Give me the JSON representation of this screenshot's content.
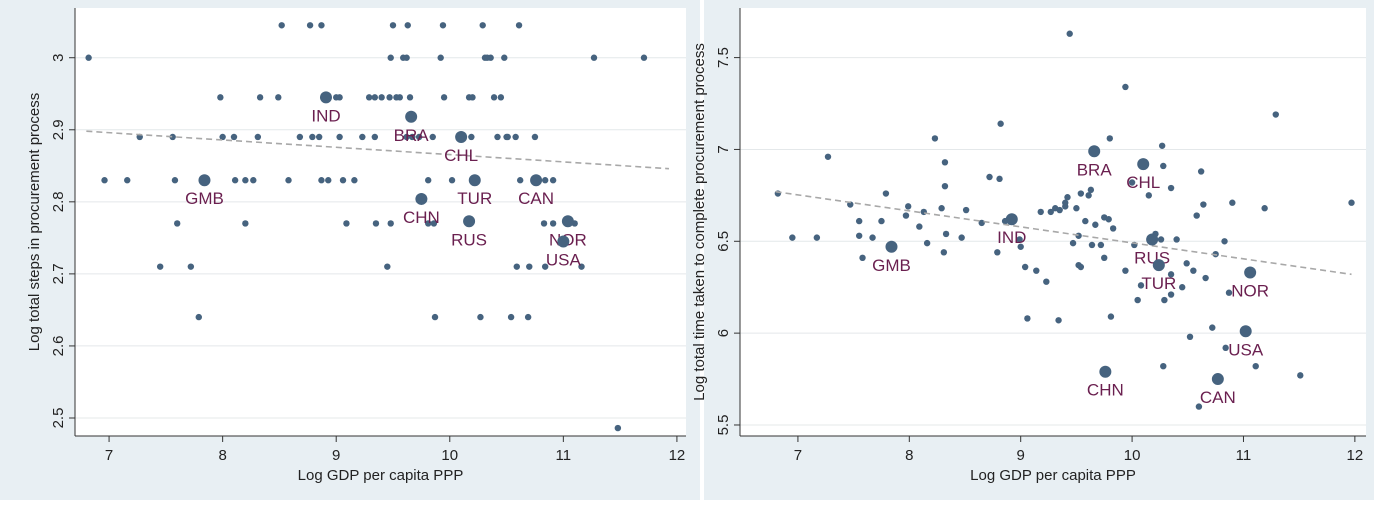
{
  "chart_data": [
    {
      "type": "scatter",
      "x_label": "Log GDP per capita PPP",
      "y_label": "Log total steps in procurement process",
      "color": "#46637f",
      "label_color": "#6a1f4f",
      "grid": true,
      "xlim": [
        6.7,
        12.08
      ],
      "ylim": [
        2.475,
        3.069
      ],
      "xticks": [
        7,
        8,
        9,
        10,
        11,
        12
      ],
      "yticks": [
        2.5,
        2.6,
        2.7,
        2.8,
        2.9,
        3
      ],
      "x": [
        6.82,
        7.27,
        6.96,
        7.16,
        7.56,
        7.58,
        7.6,
        7.45,
        7.72,
        7.79,
        7.98,
        8.0,
        8.1,
        8.11,
        8.2,
        8.27,
        8.2,
        8.31,
        8.33,
        8.49,
        8.52,
        8.58,
        8.68,
        8.77,
        8.87,
        8.79,
        8.85,
        8.87,
        8.93,
        9.0,
        9.03,
        9.03,
        9.06,
        9.09,
        9.16,
        9.23,
        9.29,
        9.34,
        9.4,
        9.47,
        9.53,
        9.56,
        9.34,
        9.35,
        9.48,
        9.45,
        9.48,
        9.59,
        9.62,
        9.5,
        9.63,
        9.62,
        9.67,
        9.73,
        9.65,
        9.81,
        9.85,
        9.81,
        9.86,
        9.87,
        9.92,
        9.94,
        9.95,
        10.02,
        10.19,
        10.17,
        10.2,
        10.29,
        10.31,
        10.33,
        10.36,
        10.27,
        10.39,
        10.45,
        10.42,
        10.5,
        10.48,
        10.51,
        10.58,
        10.61,
        10.59,
        10.7,
        10.54,
        10.69,
        10.62,
        10.77,
        10.84,
        10.91,
        10.75,
        10.83,
        10.91,
        11.1,
        10.84,
        11.16,
        11.27,
        11.48,
        11.71
      ],
      "values": [
        3.0,
        2.89,
        2.83,
        2.83,
        2.89,
        2.83,
        2.77,
        2.71,
        2.71,
        2.64,
        2.945,
        2.89,
        2.89,
        2.83,
        2.83,
        2.83,
        2.77,
        2.89,
        2.945,
        2.945,
        3.045,
        2.83,
        2.89,
        3.045,
        3.045,
        2.89,
        2.89,
        2.83,
        2.83,
        2.945,
        2.945,
        2.89,
        2.83,
        2.77,
        2.83,
        2.89,
        2.945,
        2.945,
        2.945,
        2.945,
        2.945,
        2.945,
        2.89,
        2.77,
        2.77,
        2.71,
        3.0,
        3.0,
        3.0,
        3.045,
        3.045,
        2.89,
        2.89,
        2.89,
        2.945,
        2.83,
        2.89,
        2.77,
        2.77,
        2.64,
        3.0,
        3.045,
        2.945,
        2.83,
        2.89,
        2.945,
        2.945,
        3.045,
        3.0,
        3.0,
        3.0,
        2.64,
        2.945,
        2.945,
        2.89,
        2.89,
        3.0,
        2.89,
        2.89,
        3.045,
        2.71,
        2.71,
        2.64,
        2.64,
        2.83,
        2.83,
        2.83,
        2.83,
        2.89,
        2.77,
        2.77,
        2.77,
        2.71,
        2.71,
        3.0,
        2.486,
        3.0
      ],
      "highlights": {
        "labels": [
          "GMB",
          "IND",
          "BRA",
          "CHN",
          "CHL",
          "TUR",
          "RUS",
          "CAN",
          "NOR",
          "USA"
        ],
        "x": [
          7.84,
          8.91,
          9.66,
          9.75,
          10.1,
          10.22,
          10.17,
          10.76,
          11.04,
          11.0
        ],
        "values": [
          2.83,
          2.945,
          2.918,
          2.804,
          2.89,
          2.83,
          2.773,
          2.83,
          2.773,
          2.745
        ]
      },
      "fit": {
        "x": [
          6.8,
          11.93
        ],
        "values": [
          2.898,
          2.846
        ]
      }
    },
    {
      "type": "scatter",
      "x_label": "Log GDP per capita PPP",
      "y_label": "Log total time taken to complete procurement process",
      "color": "#46637f",
      "label_color": "#6a1f4f",
      "grid": true,
      "xlim": [
        6.48,
        12.1
      ],
      "ylim": [
        5.44,
        7.77
      ],
      "xticks": [
        7,
        8,
        9,
        10,
        11,
        12
      ],
      "yticks": [
        5.5,
        6,
        6.5,
        7,
        7.5
      ],
      "x": [
        6.82,
        6.95,
        7.17,
        7.27,
        7.47,
        7.55,
        7.55,
        7.58,
        7.67,
        7.75,
        7.79,
        7.97,
        7.99,
        8.09,
        8.13,
        8.16,
        8.23,
        8.29,
        8.32,
        8.32,
        8.33,
        8.31,
        8.47,
        8.51,
        8.65,
        8.72,
        8.79,
        8.81,
        8.82,
        8.86,
        8.99,
        9.0,
        9.04,
        9.06,
        9.14,
        9.18,
        9.23,
        9.27,
        9.31,
        9.35,
        9.4,
        9.4,
        9.42,
        9.34,
        9.44,
        9.47,
        9.5,
        9.52,
        9.54,
        9.52,
        9.54,
        9.58,
        9.61,
        9.63,
        9.64,
        9.67,
        9.72,
        9.75,
        9.79,
        9.75,
        9.8,
        9.81,
        9.83,
        9.94,
        9.94,
        10.0,
        10.02,
        10.08,
        10.05,
        10.15,
        10.21,
        10.26,
        10.27,
        10.28,
        10.29,
        10.35,
        10.35,
        10.35,
        10.4,
        10.28,
        10.45,
        10.49,
        10.52,
        10.55,
        10.58,
        10.6,
        10.62,
        10.64,
        10.66,
        10.72,
        10.75,
        10.83,
        10.84,
        10.87,
        10.9,
        11.11,
        11.19,
        11.29,
        11.51,
        11.97
      ],
      "values": [
        6.76,
        6.52,
        6.52,
        6.96,
        6.7,
        6.61,
        6.53,
        6.41,
        6.52,
        6.61,
        6.76,
        6.64,
        6.69,
        6.58,
        6.66,
        6.49,
        7.06,
        6.68,
        6.93,
        6.8,
        6.54,
        6.44,
        6.52,
        6.67,
        6.6,
        6.85,
        6.44,
        6.84,
        7.14,
        6.61,
        6.51,
        6.47,
        6.36,
        6.08,
        6.34,
        6.66,
        6.28,
        6.66,
        6.68,
        6.67,
        6.69,
        6.71,
        6.74,
        6.07,
        7.63,
        6.49,
        6.68,
        6.53,
        6.76,
        6.37,
        6.36,
        6.61,
        6.75,
        6.78,
        6.48,
        6.59,
        6.48,
        6.63,
        6.62,
        6.41,
        7.06,
        6.09,
        6.57,
        7.34,
        6.34,
        6.82,
        6.48,
        6.26,
        6.18,
        6.75,
        6.54,
        6.51,
        7.02,
        6.91,
        6.18,
        6.21,
        6.79,
        6.32,
        6.51,
        5.82,
        6.25,
        6.38,
        5.98,
        6.34,
        6.64,
        5.6,
        6.88,
        6.7,
        6.3,
        6.03,
        6.43,
        6.5,
        5.92,
        6.22,
        6.71,
        5.82,
        6.68,
        7.19,
        5.77,
        6.71
      ],
      "highlights": {
        "labels": [
          "GMB",
          "IND",
          "BRA",
          "CHL",
          "RUS",
          "TUR",
          "CHN",
          "CAN",
          "USA",
          "NOR"
        ],
        "x": [
          7.84,
          8.92,
          9.66,
          10.1,
          10.18,
          10.24,
          9.76,
          10.77,
          11.02,
          11.06
        ],
        "values": [
          6.47,
          6.62,
          6.99,
          6.92,
          6.51,
          6.37,
          5.79,
          5.75,
          6.01,
          6.33
        ]
      },
      "fit": {
        "x": [
          6.8,
          11.97
        ],
        "values": [
          6.77,
          6.32
        ]
      }
    }
  ]
}
